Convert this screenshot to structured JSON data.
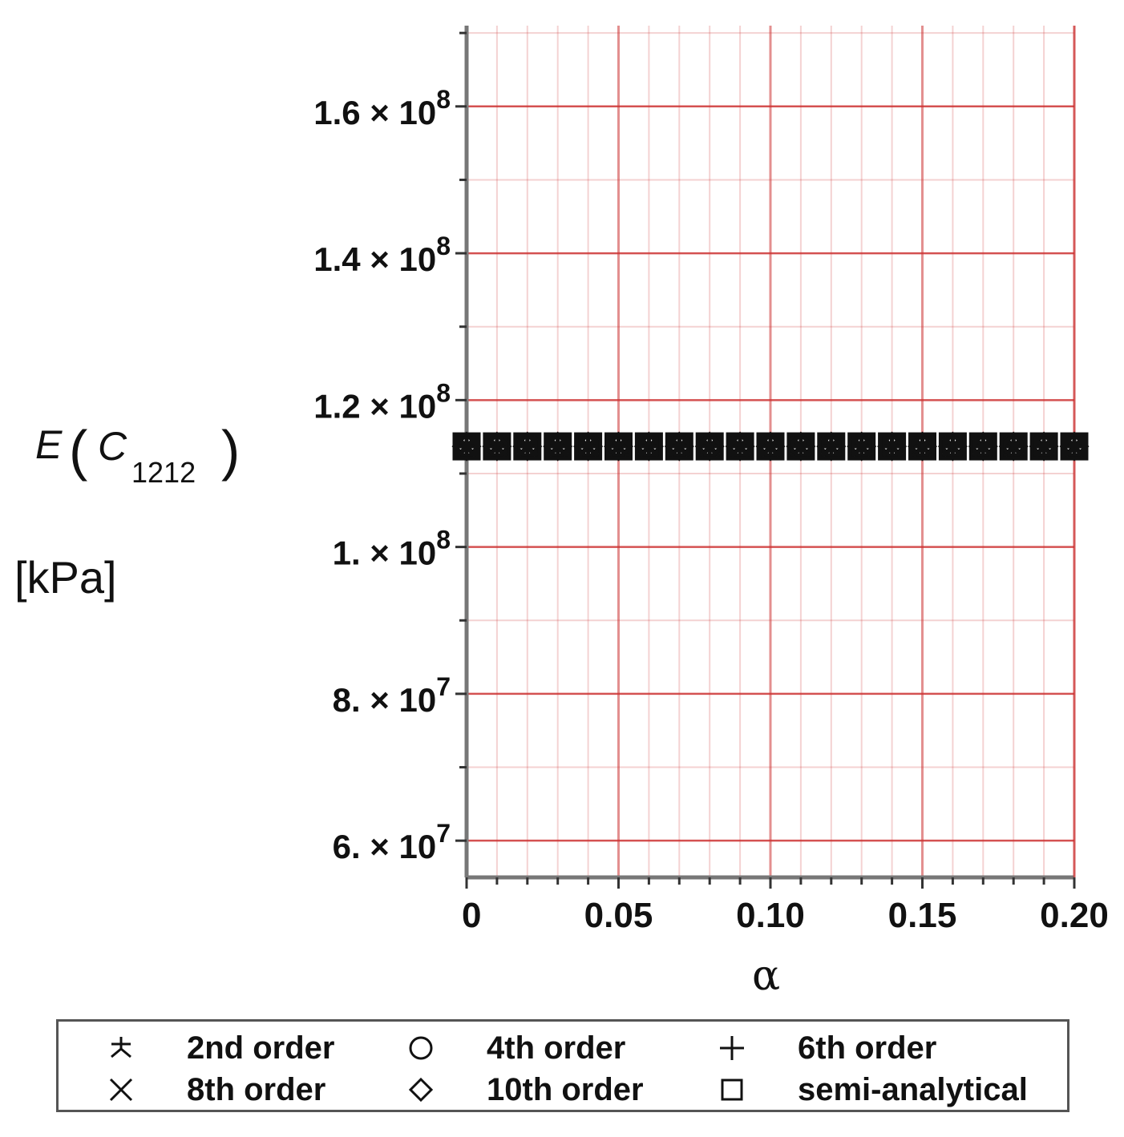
{
  "chart_data": {
    "type": "scatter",
    "title": "",
    "xlabel": "α",
    "ylabel": {
      "main": "E",
      "symbol": "C",
      "subscript": "1212"
    },
    "unit": "[kPa]",
    "xlim": [
      0,
      0.2
    ],
    "ylim": [
      55000000,
      171000000
    ],
    "x_ticks": [
      {
        "value": 0,
        "label": "0"
      },
      {
        "value": 0.05,
        "label": "0.05"
      },
      {
        "value": 0.1,
        "label": "0.10"
      },
      {
        "value": 0.15,
        "label": "0.15"
      },
      {
        "value": 0.2,
        "label": "0.20"
      }
    ],
    "y_ticks": [
      {
        "value": 60000000,
        "mantissa": "6.",
        "exp": "7"
      },
      {
        "value": 80000000,
        "mantissa": "8.",
        "exp": "7"
      },
      {
        "value": 100000000,
        "mantissa": "1.",
        "exp": "8"
      },
      {
        "value": 120000000,
        "mantissa": "1.2",
        "exp": "8"
      },
      {
        "value": 140000000,
        "mantissa": "1.4",
        "exp": "8"
      },
      {
        "value": 160000000,
        "mantissa": "1.6",
        "exp": "8"
      }
    ],
    "grid": true,
    "grid_color": "#cc3333",
    "x": [
      0,
      0.01,
      0.02,
      0.03,
      0.04,
      0.05,
      0.06,
      0.07,
      0.08,
      0.09,
      0.1,
      0.11,
      0.12,
      0.13,
      0.14,
      0.15,
      0.16,
      0.17,
      0.18,
      0.19,
      0.2
    ],
    "series": [
      {
        "name": "2nd order",
        "marker": "asterisk-icon",
        "values": [
          113700000,
          113700000,
          113700000,
          113700000,
          113700000,
          113700000,
          113700000,
          113700000,
          113700000,
          113700000,
          113700000,
          113700000,
          113700000,
          113700000,
          113700000,
          113700000,
          113700000,
          113700000,
          113700000,
          113700000,
          113700000
        ]
      },
      {
        "name": "4th order",
        "marker": "circle-icon",
        "values": [
          113700000,
          113700000,
          113700000,
          113700000,
          113700000,
          113700000,
          113700000,
          113700000,
          113700000,
          113700000,
          113700000,
          113700000,
          113700000,
          113700000,
          113700000,
          113700000,
          113700000,
          113700000,
          113700000,
          113700000,
          113700000
        ]
      },
      {
        "name": "6th order",
        "marker": "plus-icon",
        "values": [
          113700000,
          113700000,
          113700000,
          113700000,
          113700000,
          113700000,
          113700000,
          113700000,
          113700000,
          113700000,
          113700000,
          113700000,
          113700000,
          113700000,
          113700000,
          113700000,
          113700000,
          113700000,
          113700000,
          113700000,
          113700000
        ]
      },
      {
        "name": "8th order",
        "marker": "cross-icon",
        "values": [
          113700000,
          113700000,
          113700000,
          113700000,
          113700000,
          113700000,
          113700000,
          113700000,
          113700000,
          113700000,
          113700000,
          113700000,
          113700000,
          113700000,
          113700000,
          113700000,
          113700000,
          113700000,
          113700000,
          113700000,
          113700000
        ]
      },
      {
        "name": "10th order",
        "marker": "diamond-icon",
        "values": [
          113700000,
          113700000,
          113700000,
          113700000,
          113700000,
          113700000,
          113700000,
          113700000,
          113700000,
          113700000,
          113700000,
          113700000,
          113700000,
          113700000,
          113700000,
          113700000,
          113700000,
          113700000,
          113700000,
          113700000,
          113700000
        ]
      },
      {
        "name": "semi-analytical",
        "marker": "square-icon",
        "values": [
          113700000,
          113700000,
          113700000,
          113700000,
          113700000,
          113700000,
          113700000,
          113700000,
          113700000,
          113700000,
          113700000,
          113700000,
          113700000,
          113700000,
          113700000,
          113700000,
          113700000,
          113700000,
          113700000,
          113700000,
          113700000
        ]
      }
    ],
    "legend_position": "bottom"
  }
}
